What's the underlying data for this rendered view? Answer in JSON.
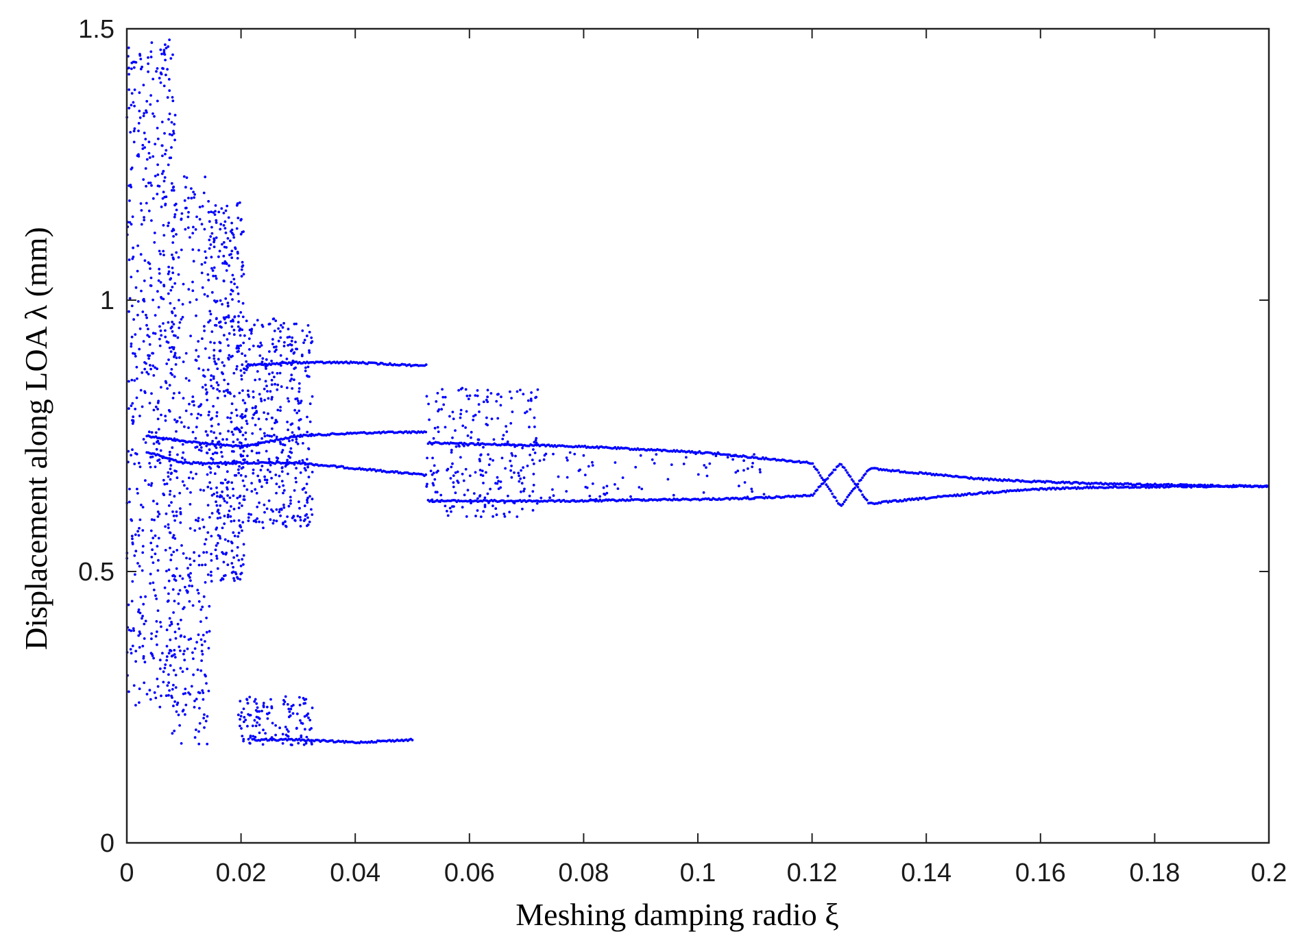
{
  "chart_data": {
    "type": "scatter",
    "title": "",
    "xlabel": "Meshing damping radio  ξ",
    "ylabel": "Displacement along LOA λ (mm)",
    "xlim": [
      0,
      0.2
    ],
    "ylim": [
      0,
      1.5
    ],
    "x_ticks": [
      0,
      0.02,
      0.04,
      0.06,
      0.08,
      0.1,
      0.12,
      0.14,
      0.16,
      0.18,
      0.2
    ],
    "x_tick_labels": [
      "0",
      "0.02",
      "0.04",
      "0.06",
      "0.08",
      "0.1",
      "0.12",
      "0.14",
      "0.16",
      "0.18",
      "0.2"
    ],
    "y_ticks": [
      0,
      0.5,
      1,
      1.5
    ],
    "y_tick_labels": [
      "0",
      "0.5",
      "1",
      "1.5"
    ],
    "grid": false,
    "legend": "none",
    "series": [
      {
        "description_colour": "#0000ff",
        "branches": [
          {
            "x": [
              0.0035,
              0.01,
              0.02,
              0.03,
              0.04,
              0.05,
              0.0525
            ],
            "y": [
              0.75,
              0.74,
              0.73,
              0.75,
              0.755,
              0.757,
              0.757
            ]
          },
          {
            "x": [
              0.0035,
              0.01,
              0.02,
              0.03,
              0.04,
              0.05,
              0.0525
            ],
            "y": [
              0.72,
              0.7,
              0.7,
              0.7,
              0.69,
              0.68,
              0.677
            ]
          },
          {
            "x": [
              0.0525,
              0.06,
              0.07,
              0.08,
              0.09,
              0.1,
              0.11,
              0.12,
              0.125,
              0.13,
              0.135,
              0.14,
              0.15,
              0.16,
              0.17,
              0.18,
              0.19,
              0.2
            ],
            "y": [
              0.737,
              0.735,
              0.733,
              0.73,
              0.725,
              0.72,
              0.71,
              0.7,
              0.62,
              0.69,
              0.685,
              0.68,
              0.67,
              0.665,
              0.662,
              0.66,
              0.658,
              0.657
            ]
          },
          {
            "x": [
              0.0525,
              0.06,
              0.07,
              0.08,
              0.09,
              0.1,
              0.11,
              0.12,
              0.125,
              0.13,
              0.135,
              0.14,
              0.15,
              0.16,
              0.17,
              0.18,
              0.19,
              0.2
            ],
            "y": [
              0.63,
              0.63,
              0.63,
              0.63,
              0.632,
              0.633,
              0.635,
              0.64,
              0.7,
              0.625,
              0.63,
              0.635,
              0.645,
              0.652,
              0.655,
              0.656,
              0.657,
              0.657
            ]
          },
          {
            "x": [
              0.021,
              0.03,
              0.04,
              0.05,
              0.0525
            ],
            "y": [
              0.88,
              0.885,
              0.885,
              0.88,
              0.88
            ]
          },
          {
            "x": [
              0.022,
              0.03,
              0.04,
              0.05
            ],
            "y": [
              0.19,
              0.19,
              0.185,
              0.19
            ]
          }
        ],
        "scatter_regions": [
          {
            "x": [
              0.0,
              0.0085
            ],
            "y": [
              0.25,
              1.48
            ],
            "n": 550
          },
          {
            "x": [
              0.0075,
              0.0145
            ],
            "y": [
              0.18,
              1.23
            ],
            "n": 360
          },
          {
            "x": [
              0.0145,
              0.0205
            ],
            "y": [
              0.48,
              1.18
            ],
            "n": 380
          },
          {
            "x": [
              0.0195,
              0.0325
            ],
            "y": [
              0.58,
              0.97
            ],
            "n": 420
          },
          {
            "x": [
              0.0195,
              0.0325
            ],
            "y": [
              0.18,
              0.27
            ],
            "n": 120
          },
          {
            "x": [
              0.0525,
              0.072
            ],
            "y": [
              0.6,
              0.84
            ],
            "n": 240
          },
          {
            "x": [
              0.072,
              0.112
            ],
            "y": [
              0.63,
              0.72
            ],
            "n": 90
          }
        ]
      }
    ]
  }
}
